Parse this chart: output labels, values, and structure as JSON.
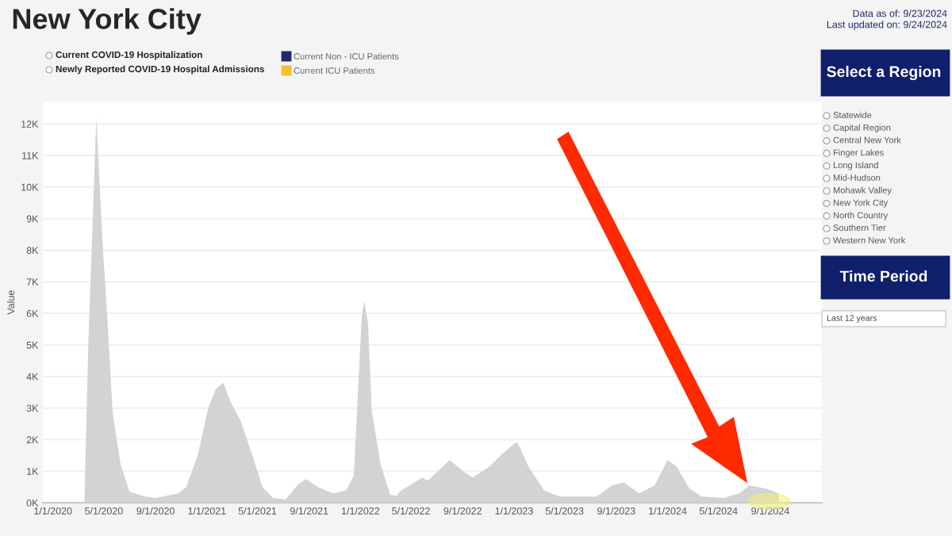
{
  "chart_data": {
    "type": "area",
    "title": "New York City",
    "ylabel": "Value",
    "annotations": [
      "Data as of: 9/23/2024",
      "Last updated on: 9/24/2024",
      "Current COVID-19 Hospitalization",
      "Newly Reported COVID-19 Hospital Admissions",
      "Current Non - ICU Patients",
      "Current ICU Patients",
      "Select a Region",
      "Statewide",
      "Capital Region",
      "Central New York",
      "Finger Lakes",
      "Long Island",
      "Mid-Hudson",
      "Mohawk Valley",
      "New York City",
      "North Country",
      "Southern Tier",
      "Western New York",
      "Time Period",
      "Last 12 years"
    ],
    "x": [
      "2020-03-16",
      "2020-03-25",
      "2020-04-13",
      "2020-04-28",
      "2020-05-10",
      "2020-05-22",
      "2020-06-10",
      "2020-07-01",
      "2020-08-07",
      "2020-09-01",
      "2020-10-07",
      "2020-10-25",
      "2020-11-13",
      "2020-12-10",
      "2021-01-04",
      "2021-01-22",
      "2021-02-09",
      "2021-02-26",
      "2021-03-22",
      "2021-04-19",
      "2021-05-13",
      "2021-06-07",
      "2021-07-07",
      "2021-08-07",
      "2021-08-25",
      "2021-09-22",
      "2021-10-28",
      "2021-11-28",
      "2021-12-16",
      "2022-01-04",
      "2022-01-10",
      "2022-01-19",
      "2022-01-28",
      "2022-02-18",
      "2022-03-13",
      "2022-03-28",
      "2022-04-06",
      "2022-05-28",
      "2022-06-10",
      "2022-08-01",
      "2022-09-07",
      "2022-09-25",
      "2022-11-04",
      "2022-12-04",
      "2023-01-04",
      "2023-01-10",
      "2023-02-04",
      "2023-03-13",
      "2023-04-19",
      "2023-07-16",
      "2023-08-22",
      "2023-09-19",
      "2023-10-25",
      "2023-12-01",
      "2024-01-01",
      "2024-01-22",
      "2024-02-22",
      "2024-03-22",
      "2024-05-13",
      "2024-06-19",
      "2024-07-13",
      "2024-08-22",
      "2024-09-22"
    ],
    "series": [
      {
        "color": "#d3d3d3",
        "values": [
          100,
          5000,
          12200,
          8250,
          5700,
          2850,
          1200,
          350,
          200,
          150,
          250,
          300,
          500,
          1500,
          3000,
          3600,
          3800,
          3200,
          2600,
          1500,
          500,
          150,
          100,
          600,
          750,
          500,
          300,
          400,
          850,
          5900,
          6400,
          5700,
          2900,
          1200,
          250,
          220,
          370,
          800,
          700,
          1350,
          950,
          800,
          1150,
          1550,
          1900,
          1900,
          1150,
          400,
          200,
          200,
          550,
          650,
          300,
          550,
          1350,
          1150,
          450,
          200,
          150,
          300,
          550,
          450,
          300
        ]
      }
    ],
    "xlim": [
      "2019-12-08",
      "2025-01-01"
    ],
    "xticks": [
      {
        "value": "2020-01-01",
        "label": "1/1/2020"
      },
      {
        "value": "2020-05-01",
        "label": "5/1/2020"
      },
      {
        "value": "2020-09-01",
        "label": "9/1/2020"
      },
      {
        "value": "2021-01-01",
        "label": "1/1/2021"
      },
      {
        "value": "2021-05-01",
        "label": "5/1/2021"
      },
      {
        "value": "2021-09-01",
        "label": "9/1/2021"
      },
      {
        "value": "2022-01-01",
        "label": "1/1/2022"
      },
      {
        "value": "2022-05-01",
        "label": "5/1/2022"
      },
      {
        "value": "2022-09-01",
        "label": "9/1/2022"
      },
      {
        "value": "2023-01-01",
        "label": "1/1/2023"
      },
      {
        "value": "2023-05-01",
        "label": "5/1/2023"
      },
      {
        "value": "2023-09-01",
        "label": "9/1/2023"
      },
      {
        "value": "2024-01-01",
        "label": "1/1/2024"
      },
      {
        "value": "2024-05-01",
        "label": "5/1/2024"
      },
      {
        "value": "2024-09-01",
        "label": "9/1/2024"
      }
    ],
    "ylim": [
      0,
      12700
    ],
    "yticks": [
      {
        "value": 0,
        "label": "0K"
      },
      {
        "value": 1000,
        "label": "1K"
      },
      {
        "value": 2000,
        "label": "2K"
      },
      {
        "value": 3000,
        "label": "3K"
      },
      {
        "value": 4000,
        "label": "4K"
      },
      {
        "value": 5000,
        "label": "5K"
      },
      {
        "value": 6000,
        "label": "6K"
      },
      {
        "value": 7000,
        "label": "7K"
      },
      {
        "value": 8000,
        "label": "8K"
      },
      {
        "value": 9000,
        "label": "9K"
      },
      {
        "value": 10000,
        "label": "10K"
      },
      {
        "value": 11000,
        "label": "11K"
      },
      {
        "value": 12000,
        "label": "12K"
      }
    ],
    "grid": "y"
  }
}
